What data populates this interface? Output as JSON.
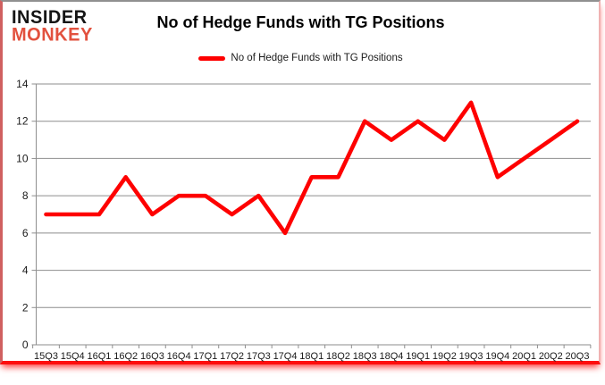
{
  "branding": {
    "logo_line1": "INSIDER",
    "logo_line2": "MONKEY",
    "logo_color_primary": "#151515",
    "logo_color_secondary": "#e2513e"
  },
  "header": {
    "title": "No of Hedge Funds with TG Positions"
  },
  "legend": {
    "label": "No of Hedge Funds with TG Positions",
    "swatch_color": "#fe0000"
  },
  "chart_data": {
    "type": "line",
    "title": "No of Hedge Funds with TG Positions",
    "categories": [
      "15Q3",
      "15Q4",
      "16Q1",
      "16Q2",
      "16Q3",
      "16Q4",
      "17Q1",
      "17Q2",
      "17Q3",
      "17Q4",
      "18Q1",
      "18Q2",
      "18Q3",
      "18Q4",
      "19Q1",
      "19Q2",
      "19Q3",
      "19Q4",
      "20Q1",
      "20Q2",
      "20Q3"
    ],
    "series": [
      {
        "name": "No of Hedge Funds with TG Positions",
        "color": "#fe0000",
        "values": [
          7,
          7,
          7,
          9,
          7,
          8,
          8,
          7,
          8,
          6,
          9,
          9,
          12,
          11,
          12,
          11,
          13,
          9,
          10,
          11,
          12
        ]
      }
    ],
    "xlabel": "",
    "ylabel": "",
    "ylim": [
      0,
      14
    ],
    "ytick_interval": 2,
    "grid": true,
    "legend_position": "top",
    "style": {
      "grid_color": "#8e8e8e",
      "axis_color": "#8e8e8e",
      "label_color": "#1a1a1a",
      "line_width": 4.6,
      "ylabel_font_size": 12,
      "xlabel_font_size": 11
    }
  }
}
